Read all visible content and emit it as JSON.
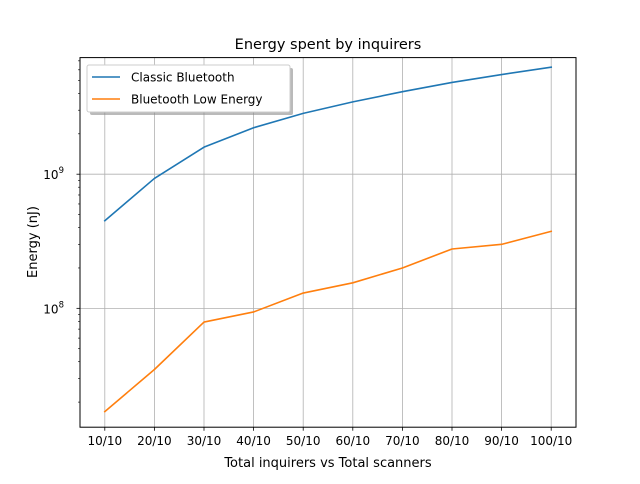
{
  "chart_data": {
    "type": "line",
    "title": "Energy spent by inquirers",
    "xlabel": "Total inquirers vs Total scanners",
    "ylabel": "Energy (nJ)",
    "categories": [
      "10/10",
      "20/10",
      "30/10",
      "40/10",
      "50/10",
      "60/10",
      "70/10",
      "80/10",
      "90/10",
      "100/10"
    ],
    "yscale": "log",
    "ylim": [
      13000000,
      7400000000
    ],
    "yticks": [
      {
        "value": 100000000,
        "base": "10",
        "exp": "8"
      },
      {
        "value": 1000000000,
        "base": "10",
        "exp": "9"
      }
    ],
    "grid": true,
    "legend_position": "top-left",
    "series": [
      {
        "name": "Classic Bluetooth",
        "color": "#1f77b4",
        "values": [
          450000000,
          930000000,
          1590000000,
          2220000000,
          2840000000,
          3460000000,
          4120000000,
          4830000000,
          5530000000,
          6280000000
        ]
      },
      {
        "name": "Bluetooth Low Energy",
        "color": "#ff7f0e",
        "values": [
          17000000,
          35000000,
          79000000,
          94000000,
          130000000,
          155000000,
          200000000,
          277000000,
          300000000,
          375000000
        ]
      }
    ]
  }
}
